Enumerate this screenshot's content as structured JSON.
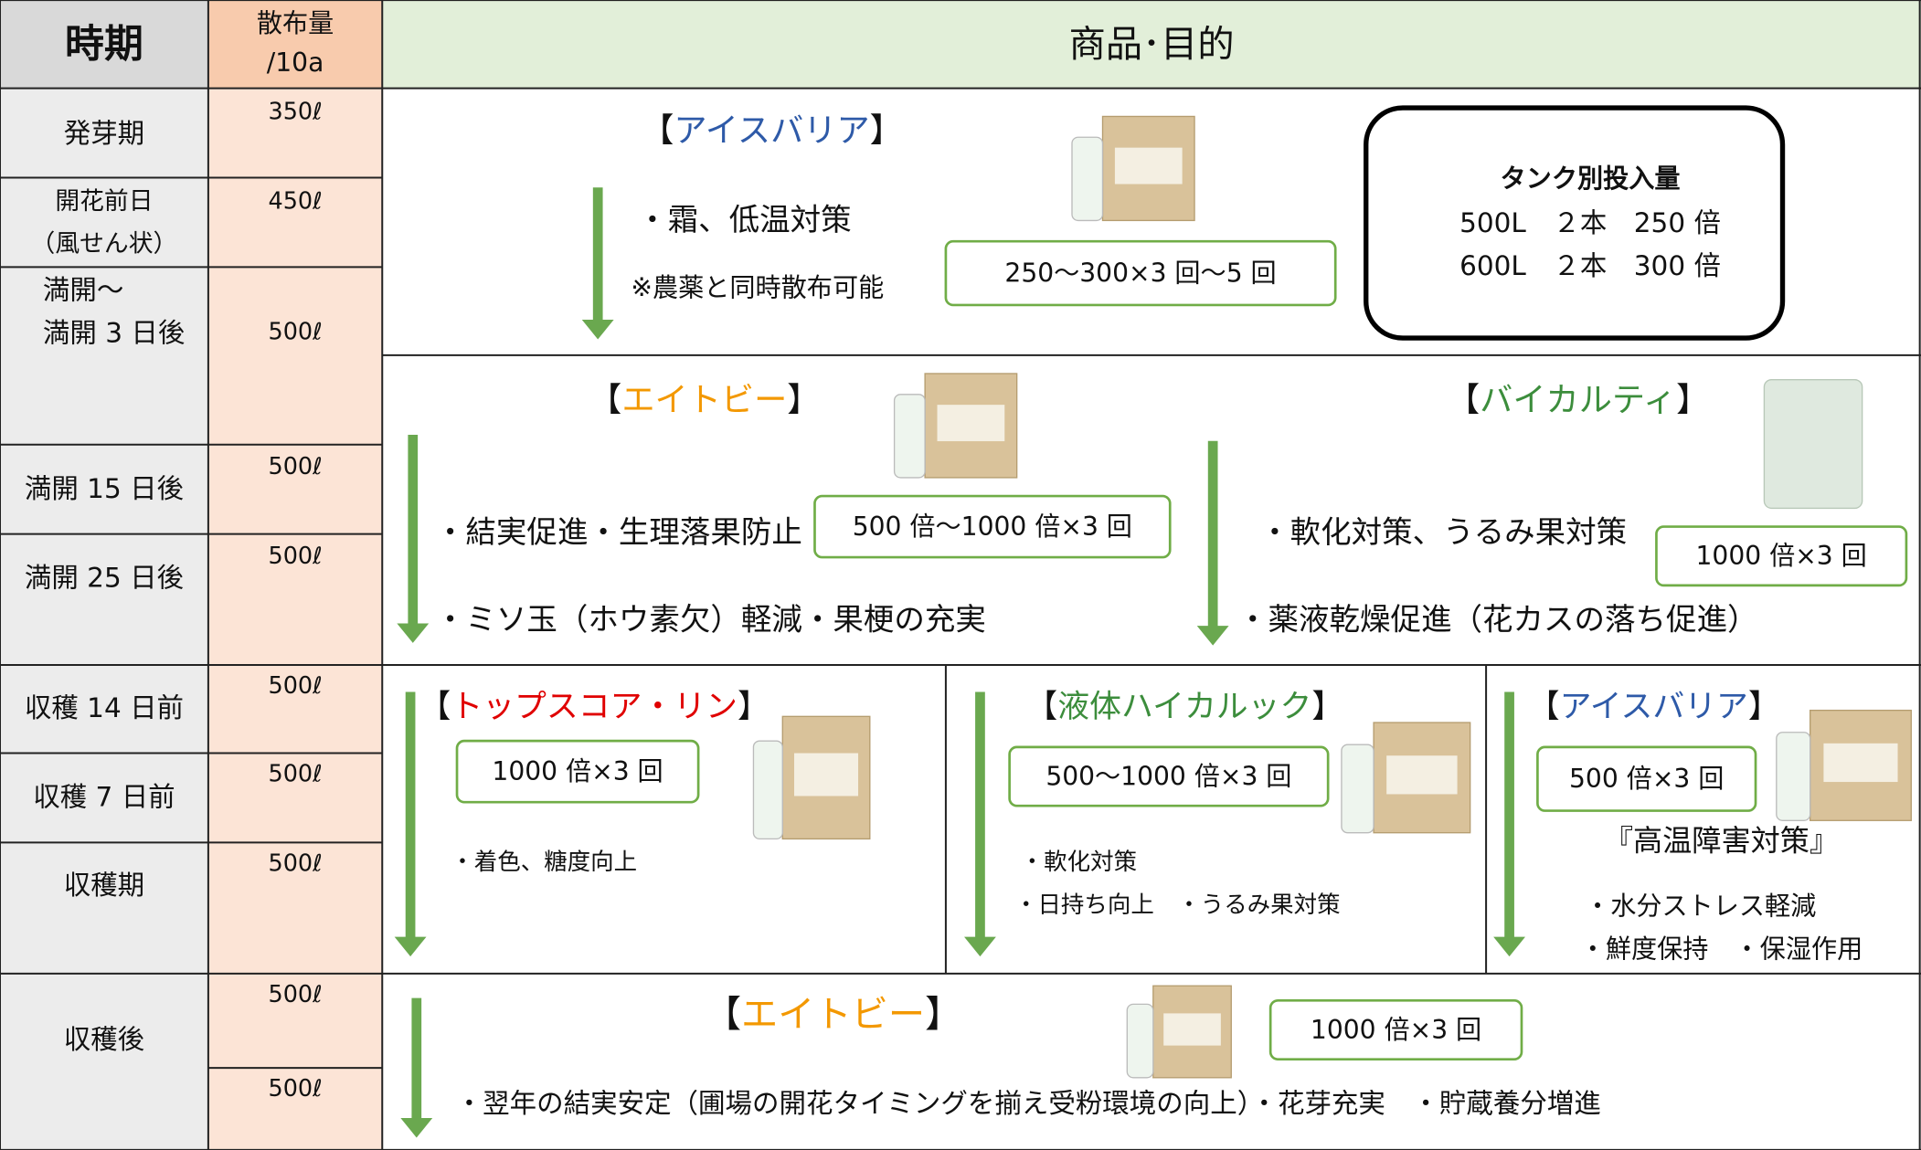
{
  "header": {
    "period": "時期",
    "amount": [
      "散布量",
      "/10a"
    ],
    "product": "商品･目的"
  },
  "rows": {
    "periods": [
      [
        "発芽期"
      ],
      [
        "開花前日",
        "（風せん状）"
      ],
      [
        "満開～",
        "満開 3 日後"
      ],
      [
        "満開 15 日後"
      ],
      [
        "満開 25 日後"
      ],
      [
        "収穫 14 日前"
      ],
      [
        "収穫 7 日前"
      ],
      [
        "収穫期"
      ],
      [
        "収穫後"
      ]
    ],
    "amounts": [
      "350ℓ",
      "450ℓ",
      "500ℓ",
      "500ℓ",
      "500ℓ",
      "500ℓ",
      "500ℓ",
      "500ℓ",
      "500ℓ",
      "500ℓ"
    ]
  },
  "sections": [
    {
      "products": [
        {
          "open": "【",
          "name": "アイスバリア",
          "close": "】",
          "points": [
            "・霜、低温対策"
          ],
          "note": "※農薬と同時散布可能",
          "dose": "250～300×3 回～5 回"
        }
      ],
      "tank": {
        "title": "タンク別投入量",
        "lines": [
          "500L　２本　250 倍",
          "600L　２本　300 倍"
        ]
      }
    },
    {
      "products": [
        {
          "open": "【",
          "name": "エイトビー",
          "close": "】",
          "points": [
            "・結実促進・生理落果防止",
            "・ミソ玉（ホウ素欠）軽減・果梗の充実"
          ],
          "dose": "500 倍～1000 倍×3 回"
        },
        {
          "open": "【",
          "name": "バイカルティ",
          "close": "】",
          "points": [
            "・軟化対策、うるみ果対策",
            "・薬液乾燥促進（花カスの落ち促進）"
          ],
          "dose": "1000 倍×3 回"
        }
      ]
    },
    {
      "products": [
        {
          "open": "【",
          "name": "トップスコア・リン",
          "close": "】",
          "dose": "1000 倍×3 回",
          "points": [
            "・着色、糖度向上"
          ]
        },
        {
          "open": "【",
          "name": "液体ハイカルック",
          "close": "】",
          "dose": "500～1000 倍×3 回",
          "points": [
            "・軟化対策",
            "・日持ち向上　・うるみ果対策"
          ]
        },
        {
          "open": "【",
          "name": "アイスバリア",
          "close": "】",
          "dose": "500 倍×3 回",
          "highlight": "『高温障害対策』",
          "points": [
            "・水分ストレス軽減",
            "・鮮度保持　・保湿作用"
          ]
        }
      ]
    },
    {
      "products": [
        {
          "open": "【",
          "name": "エイトビー",
          "close": "】",
          "dose": "1000 倍×3 回",
          "points": [
            "・翌年の結実安定（圃場の開花タイミングを揃え受粉環境の向上）・花芽充実　・貯蔵養分増進"
          ]
        }
      ]
    }
  ]
}
